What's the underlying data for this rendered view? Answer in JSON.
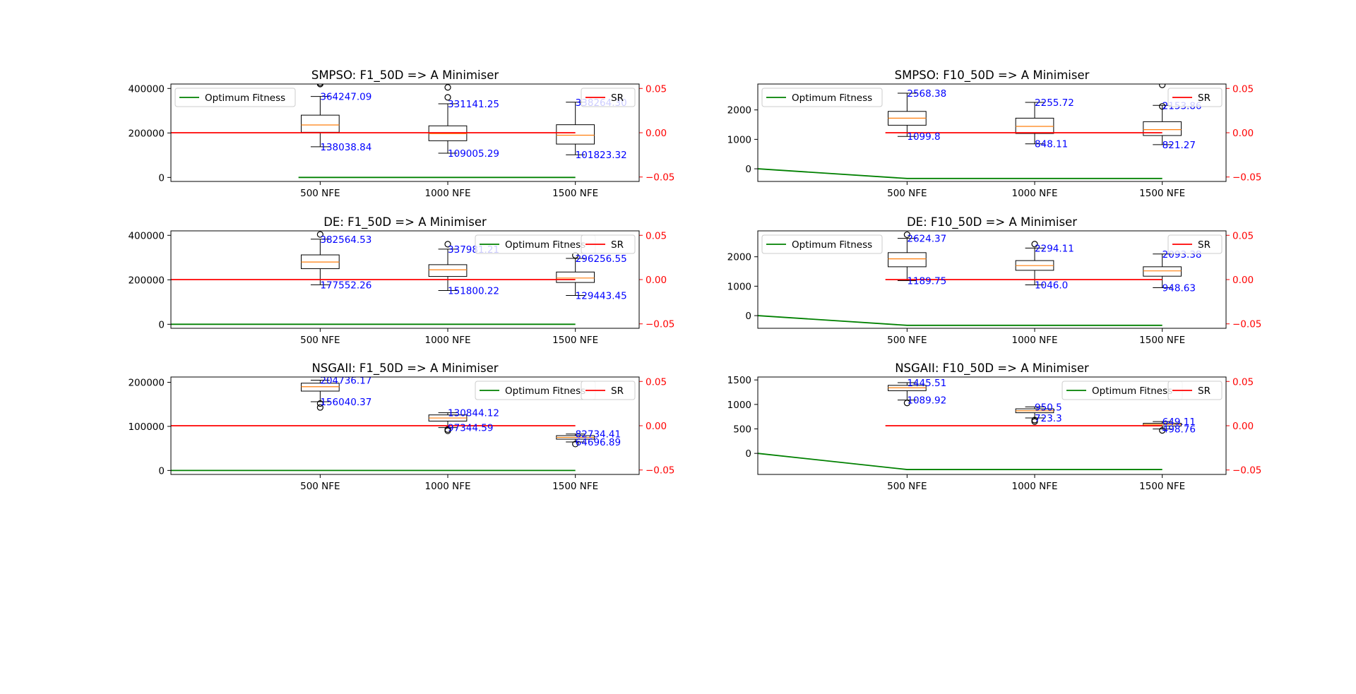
{
  "colors": {
    "box": "#000000",
    "median": "#ff7f0e",
    "optimum": "#008000",
    "sr": "#ff0000",
    "annotation": "#0000ff",
    "flier_fill": "#ffffff"
  },
  "chart_data": [
    {
      "type": "box",
      "title": "SMPSO: F1_50D => A Minimiser",
      "categories": [
        "500 NFE",
        "1000 NFE",
        "1500 NFE"
      ],
      "ylim": [
        -18000,
        420000
      ],
      "yticks": [
        0,
        200000,
        400000
      ],
      "ytick_labels": [
        "0",
        "200000",
        "400000"
      ],
      "y2lim": [
        -0.055,
        0.055
      ],
      "y2ticks": [
        -0.05,
        0,
        0.05
      ],
      "y2tick_labels": [
        "−0.05",
        "0.00",
        "0.05"
      ],
      "boxes": [
        {
          "whislo": 138038.84,
          "q1": 203000,
          "med": 236000,
          "q3": 280000,
          "whishi": 364247.09,
          "fliers": [
            420000,
            425000
          ]
        },
        {
          "whislo": 109005.29,
          "q1": 165000,
          "med": 197000,
          "q3": 232000,
          "whishi": 331141.25,
          "fliers": [
            360000,
            405000
          ]
        },
        {
          "whislo": 101823.32,
          "q1": 150000,
          "med": 190000,
          "q3": 237000,
          "whishi": 338264.3,
          "fliers": []
        }
      ],
      "annotations": [
        {
          "category_index": 0,
          "value": 364247.09,
          "text": "364247.09"
        },
        {
          "category_index": 0,
          "value": 138038.84,
          "text": "138038.84"
        },
        {
          "category_index": 1,
          "value": 331141.25,
          "text": "331141.25"
        },
        {
          "category_index": 1,
          "value": 109005.29,
          "text": "109005.29"
        },
        {
          "category_index": 2,
          "value": 338264.3,
          "text": "338264.30"
        },
        {
          "category_index": 2,
          "value": 101823.32,
          "text": "101823.32"
        }
      ],
      "optimum_fitness": {
        "name": "Optimum Fitness",
        "x": [
          -0.17,
          0,
          1,
          2
        ],
        "y": [
          0,
          0,
          0,
          0
        ]
      },
      "sr": {
        "name": "SR",
        "x": [
          -1.17,
          0,
          1,
          2
        ],
        "y": [
          0,
          0,
          0,
          0
        ]
      },
      "legend": {
        "optimum": "upper left",
        "sr": "upper right"
      }
    },
    {
      "type": "box",
      "title": "SMPSO: F10_50D => A Minimiser",
      "categories": [
        "500 NFE",
        "1000 NFE",
        "1500 NFE"
      ],
      "ylim": [
        -430,
        2880
      ],
      "yticks": [
        0,
        1000,
        2000
      ],
      "ytick_labels": [
        "0",
        "1000",
        "2000"
      ],
      "y2lim": [
        -0.055,
        0.055
      ],
      "y2ticks": [
        -0.05,
        0,
        0.05
      ],
      "y2tick_labels": [
        "−0.05",
        "0.00",
        "0.05"
      ],
      "boxes": [
        {
          "whislo": 1099.8,
          "q1": 1480,
          "med": 1720,
          "q3": 1950,
          "whishi": 2568.38,
          "fliers": []
        },
        {
          "whislo": 848.11,
          "q1": 1200,
          "med": 1440,
          "q3": 1720,
          "whishi": 2255.72,
          "fliers": []
        },
        {
          "whislo": 821.27,
          "q1": 1130,
          "med": 1330,
          "q3": 1600,
          "whishi": 2153.86,
          "fliers": [
            2850,
            2120
          ]
        }
      ],
      "annotations": [
        {
          "category_index": 0,
          "value": 2568.38,
          "text": "2568.38"
        },
        {
          "category_index": 0,
          "value": 1099.8,
          "text": "1099.8"
        },
        {
          "category_index": 1,
          "value": 2255.72,
          "text": "2255.72"
        },
        {
          "category_index": 1,
          "value": 848.11,
          "text": "848.11"
        },
        {
          "category_index": 2,
          "value": 2153.86,
          "text": "2153.86"
        },
        {
          "category_index": 2,
          "value": 821.27,
          "text": "821.27"
        }
      ],
      "optimum_fitness": {
        "name": "Optimum Fitness",
        "x": [
          -1.17,
          0,
          1,
          2
        ],
        "y": [
          0,
          -330,
          -330,
          -330
        ]
      },
      "sr": {
        "name": "SR",
        "x": [
          -0.17,
          0,
          1,
          2
        ],
        "y": [
          0,
          0,
          0,
          0
        ]
      },
      "legend": {
        "optimum": "upper left",
        "sr": "upper right"
      }
    },
    {
      "type": "box",
      "title": "DE: F1_50D => A Minimiser",
      "categories": [
        "500 NFE",
        "1000 NFE",
        "1500 NFE"
      ],
      "ylim": [
        -18000,
        420000
      ],
      "yticks": [
        0,
        200000,
        400000
      ],
      "ytick_labels": [
        "0",
        "200000",
        "400000"
      ],
      "y2lim": [
        -0.055,
        0.055
      ],
      "y2ticks": [
        -0.05,
        0,
        0.05
      ],
      "y2tick_labels": [
        "−0.05",
        "0.00",
        "0.05"
      ],
      "boxes": [
        {
          "whislo": 177552.26,
          "q1": 250000,
          "med": 280000,
          "q3": 312000,
          "whishi": 382564.53,
          "fliers": [
            404000
          ]
        },
        {
          "whislo": 151800.22,
          "q1": 215000,
          "med": 245000,
          "q3": 268000,
          "whishi": 337981.21,
          "fliers": [
            360000
          ]
        },
        {
          "whislo": 129443.45,
          "q1": 188000,
          "med": 208000,
          "q3": 235000,
          "whishi": 296256.55,
          "fliers": [
            310000
          ]
        }
      ],
      "annotations": [
        {
          "category_index": 0,
          "value": 382564.53,
          "text": "382564.53"
        },
        {
          "category_index": 0,
          "value": 177552.26,
          "text": "177552.26"
        },
        {
          "category_index": 1,
          "value": 337981.21,
          "text": "337981.21"
        },
        {
          "category_index": 1,
          "value": 151800.22,
          "text": "151800.22"
        },
        {
          "category_index": 2,
          "value": 296256.55,
          "text": "296256.55"
        },
        {
          "category_index": 2,
          "value": 129443.45,
          "text": "129443.45"
        }
      ],
      "optimum_fitness": {
        "name": "Optimum Fitness",
        "x": [
          -1.17,
          0,
          1,
          2
        ],
        "y": [
          0,
          0,
          0,
          0
        ]
      },
      "sr": {
        "name": "SR",
        "x": [
          -1.17,
          0,
          1,
          2
        ],
        "y": [
          0,
          0,
          0,
          0
        ]
      },
      "legend": {
        "optimum": "upper right",
        "sr": "upper right"
      }
    },
    {
      "type": "box",
      "title": "DE: F10_50D => A Minimiser",
      "categories": [
        "500 NFE",
        "1000 NFE",
        "1500 NFE"
      ],
      "ylim": [
        -430,
        2880
      ],
      "yticks": [
        0,
        1000,
        2000
      ],
      "ytick_labels": [
        "0",
        "1000",
        "2000"
      ],
      "y2lim": [
        -0.055,
        0.055
      ],
      "y2ticks": [
        -0.05,
        0,
        0.05
      ],
      "y2tick_labels": [
        "−0.05",
        "0.00",
        "0.05"
      ],
      "boxes": [
        {
          "whislo": 1189.75,
          "q1": 1660,
          "med": 1930,
          "q3": 2140,
          "whishi": 2624.37,
          "fliers": [
            2750
          ]
        },
        {
          "whislo": 1046.0,
          "q1": 1540,
          "med": 1700,
          "q3": 1870,
          "whishi": 2294.11,
          "fliers": [
            2430
          ]
        },
        {
          "whislo": 948.63,
          "q1": 1340,
          "med": 1520,
          "q3": 1660,
          "whishi": 2093.38,
          "fliers": []
        }
      ],
      "annotations": [
        {
          "category_index": 0,
          "value": 2624.37,
          "text": "2624.37"
        },
        {
          "category_index": 0,
          "value": 1189.75,
          "text": "1189.75"
        },
        {
          "category_index": 1,
          "value": 2294.11,
          "text": "2294.11"
        },
        {
          "category_index": 1,
          "value": 1046.0,
          "text": "1046.0"
        },
        {
          "category_index": 2,
          "value": 2093.38,
          "text": "2093.38"
        },
        {
          "category_index": 2,
          "value": 948.63,
          "text": "948.63"
        }
      ],
      "optimum_fitness": {
        "name": "Optimum Fitness",
        "x": [
          -1.17,
          0,
          1,
          2
        ],
        "y": [
          0,
          -330,
          -330,
          -330
        ]
      },
      "sr": {
        "name": "SR",
        "x": [
          -0.17,
          0,
          1,
          2
        ],
        "y": [
          0,
          0,
          0,
          0
        ]
      },
      "legend": {
        "optimum": "upper left",
        "sr": "upper right"
      }
    },
    {
      "type": "box",
      "title": "NSGAII: F1_50D => A Minimiser",
      "categories": [
        "500 NFE",
        "1000 NFE",
        "1500 NFE"
      ],
      "ylim": [
        -9000,
        212000
      ],
      "yticks": [
        0,
        100000,
        200000
      ],
      "ytick_labels": [
        "0",
        "100000",
        "200000"
      ],
      "y2lim": [
        -0.055,
        0.055
      ],
      "y2ticks": [
        -0.05,
        0,
        0.05
      ],
      "y2tick_labels": [
        "−0.05",
        "0.00",
        "0.05"
      ],
      "boxes": [
        {
          "whislo": 156040.37,
          "q1": 180000,
          "med": 190000,
          "q3": 198000,
          "whishi": 204736.17,
          "fliers": [
            152000,
            143000
          ]
        },
        {
          "whislo": 97344.59,
          "q1": 112000,
          "med": 119000,
          "q3": 126000,
          "whishi": 130844.12,
          "fliers": [
            93000,
            90000
          ]
        },
        {
          "whislo": 64696.89,
          "q1": 71000,
          "med": 75000,
          "q3": 79000,
          "whishi": 82734.41,
          "fliers": [
            60000
          ]
        }
      ],
      "annotations": [
        {
          "category_index": 0,
          "value": 204736.17,
          "text": "204736.17"
        },
        {
          "category_index": 0,
          "value": 156040.37,
          "text": "156040.37"
        },
        {
          "category_index": 1,
          "value": 130844.12,
          "text": "130844.12"
        },
        {
          "category_index": 1,
          "value": 97344.59,
          "text": "97344.59"
        },
        {
          "category_index": 2,
          "value": 82734.41,
          "text": "82734.41"
        },
        {
          "category_index": 2,
          "value": 64696.89,
          "text": "64696.89"
        }
      ],
      "optimum_fitness": {
        "name": "Optimum Fitness",
        "x": [
          -1.17,
          0,
          1,
          2
        ],
        "y": [
          0,
          0,
          0,
          0
        ]
      },
      "sr": {
        "name": "SR",
        "x": [
          -1.17,
          0,
          1,
          2
        ],
        "y": [
          0,
          0,
          0,
          0
        ]
      },
      "legend": {
        "optimum": "upper right",
        "sr": "upper right"
      }
    },
    {
      "type": "box",
      "title": "NSGAII: F10_50D => A Minimiser",
      "categories": [
        "500 NFE",
        "1000 NFE",
        "1500 NFE"
      ],
      "ylim": [
        -430,
        1560
      ],
      "yticks": [
        0,
        500,
        1000,
        1500
      ],
      "ytick_labels": [
        "0",
        "500",
        "1000",
        "1500"
      ],
      "y2lim": [
        -0.055,
        0.055
      ],
      "y2ticks": [
        -0.05,
        0,
        0.05
      ],
      "y2tick_labels": [
        "−0.05",
        "0.00",
        "0.05"
      ],
      "boxes": [
        {
          "whislo": 1089.92,
          "q1": 1280,
          "med": 1340,
          "q3": 1390,
          "whishi": 1445.51,
          "fliers": [
            1030
          ]
        },
        {
          "whislo": 723.3,
          "q1": 830,
          "med": 870,
          "q3": 910,
          "whishi": 950.5,
          "fliers": [
            680,
            650
          ]
        },
        {
          "whislo": 498.76,
          "q1": 560,
          "med": 590,
          "q3": 615,
          "whishi": 649.11,
          "fliers": [
            470
          ]
        }
      ],
      "annotations": [
        {
          "category_index": 0,
          "value": 1445.51,
          "text": "1445.51"
        },
        {
          "category_index": 0,
          "value": 1089.92,
          "text": "1089.92"
        },
        {
          "category_index": 1,
          "value": 950.5,
          "text": "950.5"
        },
        {
          "category_index": 1,
          "value": 723.3,
          "text": "723.3"
        },
        {
          "category_index": 2,
          "value": 649.11,
          "text": "649.11"
        },
        {
          "category_index": 2,
          "value": 498.76,
          "text": "498.76"
        }
      ],
      "optimum_fitness": {
        "name": "Optimum Fitness",
        "x": [
          -1.17,
          0,
          1,
          2
        ],
        "y": [
          0,
          -330,
          -330,
          -330
        ]
      },
      "sr": {
        "name": "SR",
        "x": [
          -0.17,
          0,
          1,
          2
        ],
        "y": [
          0,
          0,
          0,
          0
        ]
      },
      "legend": {
        "optimum": "upper right",
        "sr": "upper right"
      }
    }
  ]
}
